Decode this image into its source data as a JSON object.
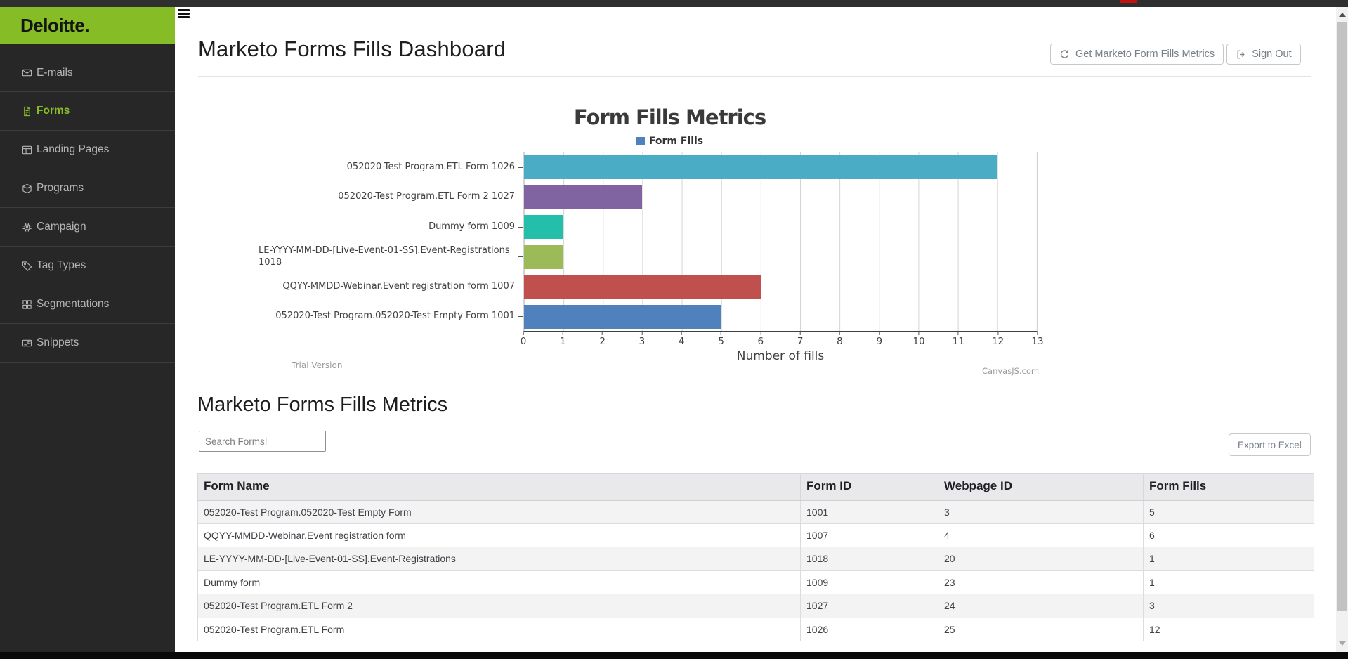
{
  "chrome": {
    "topbar_color": "#2f2f2f",
    "loading_accent": "#c0130e",
    "footer_color": "#0a0a0a"
  },
  "sidebar": {
    "logo": "Deloitte.",
    "brand_green": "#86BC25",
    "items": [
      {
        "label": "E-mails",
        "icon": "envelope",
        "active": false
      },
      {
        "label": "Forms",
        "icon": "document",
        "active": true
      },
      {
        "label": "Landing Pages",
        "icon": "layout",
        "active": false
      },
      {
        "label": "Programs",
        "icon": "cube",
        "active": false
      },
      {
        "label": "Campaign",
        "icon": "chip",
        "active": false
      },
      {
        "label": "Tag Types",
        "icon": "tag",
        "active": false
      },
      {
        "label": "Segmentations",
        "icon": "grid",
        "active": false
      },
      {
        "label": "Snippets",
        "icon": "card",
        "active": false
      }
    ]
  },
  "header": {
    "title": "Marketo Forms Fills Dashboard",
    "buttons": [
      {
        "label": "Get Marketo Form Fills Metrics",
        "icon": "refresh-icon"
      },
      {
        "label": "Sign Out",
        "icon": "sign-out-icon"
      }
    ]
  },
  "chart_data": {
    "type": "bar",
    "orientation": "horizontal",
    "title": "Form Fills Metrics",
    "legend": {
      "label": "Form Fills",
      "color": "#4F81BC",
      "position": "top"
    },
    "categories": [
      "052020-Test Program.ETL Form 1026",
      "052020-Test Program.ETL Form 2 1027",
      "Dummy form 1009",
      "LE-YYYY-MM-DD-[Live-Event-01-SS].Event-Registrations 1018",
      "QQYY-MMDD-Webinar.Event registration form 1007",
      "052020-Test Program.052020-Test Empty Form 1001"
    ],
    "values": [
      12,
      3,
      1,
      1,
      6,
      5
    ],
    "colors": [
      "#4AACC5",
      "#8064A2",
      "#23BFAA",
      "#9BBB59",
      "#C0504D",
      "#4F81BC"
    ],
    "xlabel": "Number of fills",
    "xlim": [
      0,
      13
    ],
    "xticks": [
      0,
      1,
      2,
      3,
      4,
      5,
      6,
      7,
      8,
      9,
      10,
      11,
      12,
      13
    ],
    "grid": true,
    "watermark_left": "Trial Version",
    "watermark_right": "CanvasJS.com"
  },
  "section": {
    "heading": "Marketo Forms Fills Metrics",
    "search_placeholder": "Search Forms!",
    "export_label": "Export to Excel"
  },
  "table": {
    "columns": [
      "Form Name",
      "Form ID",
      "Webpage ID",
      "Form Fills"
    ],
    "rows": [
      [
        "052020-Test Program.052020-Test Empty Form",
        "1001",
        "3",
        "5"
      ],
      [
        "QQYY-MMDD-Webinar.Event registration form",
        "1007",
        "4",
        "6"
      ],
      [
        "LE-YYYY-MM-DD-[Live-Event-01-SS].Event-Registrations",
        "1018",
        "20",
        "1"
      ],
      [
        "Dummy form",
        "1009",
        "23",
        "1"
      ],
      [
        "052020-Test Program.ETL Form 2",
        "1027",
        "24",
        "3"
      ],
      [
        "052020-Test Program.ETL Form",
        "1026",
        "25",
        "12"
      ]
    ]
  }
}
